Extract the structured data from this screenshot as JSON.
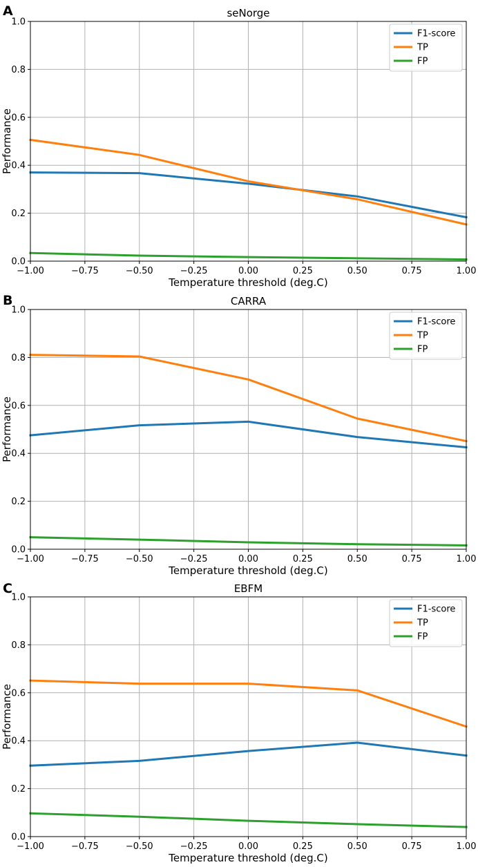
{
  "chart_data": [
    {
      "panel": "A",
      "type": "line",
      "title": "seNorge",
      "xlabel": "Temperature threshold (deg.C)",
      "ylabel": "Performance",
      "xlim": [
        -1.0,
        1.0
      ],
      "ylim": [
        0.0,
        1.0
      ],
      "xticks": [
        -1.0,
        -0.75,
        -0.5,
        -0.25,
        0.0,
        0.25,
        0.5,
        0.75,
        1.0
      ],
      "xtick_labels": [
        "−1.00",
        "−0.75",
        "−0.50",
        "−0.25",
        "0.00",
        "0.25",
        "0.50",
        "0.75",
        "1.00"
      ],
      "yticks": [
        0.0,
        0.2,
        0.4,
        0.6,
        0.8,
        1.0
      ],
      "ytick_labels": [
        "0.0",
        "0.2",
        "0.4",
        "0.6",
        "0.8",
        "1.0"
      ],
      "grid": true,
      "legend_position": "top-right",
      "x": [
        -1.0,
        -0.5,
        0.0,
        0.5,
        1.0
      ],
      "series": [
        {
          "name": "F1-score",
          "color": "#1f77b4",
          "values": [
            0.37,
            0.367,
            0.323,
            0.27,
            0.183
          ]
        },
        {
          "name": "TP",
          "color": "#ff7f0e",
          "values": [
            0.506,
            0.443,
            0.333,
            0.258,
            0.153
          ]
        },
        {
          "name": "FP",
          "color": "#2ca02c",
          "values": [
            0.034,
            0.023,
            0.017,
            0.012,
            0.007
          ]
        }
      ]
    },
    {
      "panel": "B",
      "type": "line",
      "title": "CARRA",
      "xlabel": "Temperature threshold (deg.C)",
      "ylabel": "Performance",
      "xlim": [
        -1.0,
        1.0
      ],
      "ylim": [
        0.0,
        1.0
      ],
      "xticks": [
        -1.0,
        -0.75,
        -0.5,
        -0.25,
        0.0,
        0.25,
        0.5,
        0.75,
        1.0
      ],
      "xtick_labels": [
        "−1.00",
        "−0.75",
        "−0.50",
        "−0.25",
        "0.00",
        "0.25",
        "0.50",
        "0.75",
        "1.00"
      ],
      "yticks": [
        0.0,
        0.2,
        0.4,
        0.6,
        0.8,
        1.0
      ],
      "ytick_labels": [
        "0.0",
        "0.2",
        "0.4",
        "0.6",
        "0.8",
        "1.0"
      ],
      "grid": true,
      "legend_position": "top-right",
      "x": [
        -1.0,
        -0.5,
        0.0,
        0.5,
        1.0
      ],
      "series": [
        {
          "name": "F1-score",
          "color": "#1f77b4",
          "values": [
            0.475,
            0.517,
            0.532,
            0.468,
            0.425
          ]
        },
        {
          "name": "TP",
          "color": "#ff7f0e",
          "values": [
            0.811,
            0.804,
            0.708,
            0.545,
            0.451
          ]
        },
        {
          "name": "FP",
          "color": "#2ca02c",
          "values": [
            0.05,
            0.04,
            0.029,
            0.021,
            0.016
          ]
        }
      ]
    },
    {
      "panel": "C",
      "type": "line",
      "title": "EBFM",
      "xlabel": "Temperature threshold (deg.C)",
      "ylabel": "Performance",
      "xlim": [
        -1.0,
        1.0
      ],
      "ylim": [
        0.0,
        1.0
      ],
      "xticks": [
        -1.0,
        -0.75,
        -0.5,
        -0.25,
        0.0,
        0.25,
        0.5,
        0.75,
        1.0
      ],
      "xtick_labels": [
        "−1.00",
        "−0.75",
        "−0.50",
        "−0.25",
        "0.00",
        "0.25",
        "0.50",
        "0.75",
        "1.00"
      ],
      "yticks": [
        0.0,
        0.2,
        0.4,
        0.6,
        0.8,
        1.0
      ],
      "ytick_labels": [
        "0.0",
        "0.2",
        "0.4",
        "0.6",
        "0.8",
        "1.0"
      ],
      "grid": true,
      "legend_position": "top-right",
      "x": [
        -1.0,
        -0.5,
        0.0,
        0.5,
        1.0
      ],
      "series": [
        {
          "name": "F1-score",
          "color": "#1f77b4",
          "values": [
            0.296,
            0.316,
            0.357,
            0.392,
            0.338
          ]
        },
        {
          "name": "TP",
          "color": "#ff7f0e",
          "values": [
            0.651,
            0.638,
            0.638,
            0.61,
            0.459
          ]
        },
        {
          "name": "FP",
          "color": "#2ca02c",
          "values": [
            0.097,
            0.083,
            0.066,
            0.052,
            0.04
          ]
        }
      ]
    }
  ]
}
